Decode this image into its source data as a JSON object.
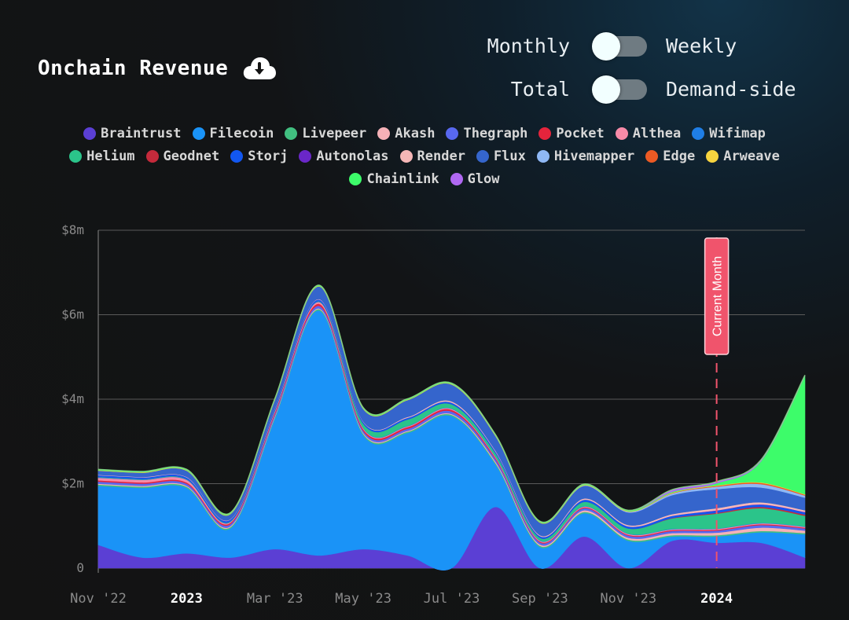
{
  "header": {
    "title": "Onchain Revenue",
    "download_icon": "cloud-download-icon"
  },
  "toggles": [
    {
      "left": "Monthly",
      "right": "Weekly",
      "state": "left"
    },
    {
      "left": "Total",
      "right": "Demand-side",
      "state": "left"
    }
  ],
  "colors": {
    "background": "#131313",
    "grid": "#5a5a5a",
    "marker": "#f0546c",
    "toggle_knob": "#f2ffff",
    "toggle_track": "#6f7b82"
  },
  "legend": [
    {
      "name": "Braintrust",
      "color": "#5b3fd4"
    },
    {
      "name": "Filecoin",
      "color": "#1a93f7"
    },
    {
      "name": "Livepeer",
      "color": "#41bf80"
    },
    {
      "name": "Akash",
      "color": "#f5b1b7"
    },
    {
      "name": "Thegraph",
      "color": "#5868ef"
    },
    {
      "name": "Pocket",
      "color": "#e5243c"
    },
    {
      "name": "Althea",
      "color": "#f78aa8"
    },
    {
      "name": "Wifimap",
      "color": "#1f7ee6"
    },
    {
      "name": "Helium",
      "color": "#2bc48a"
    },
    {
      "name": "Geodnet",
      "color": "#c52a3b"
    },
    {
      "name": "Storj",
      "color": "#1257f0"
    },
    {
      "name": "Autonolas",
      "color": "#6a27c8"
    },
    {
      "name": "Render",
      "color": "#f6b7b7"
    },
    {
      "name": "Flux",
      "color": "#3565cc"
    },
    {
      "name": "Hivemapper",
      "color": "#8fb8f5"
    },
    {
      "name": "Edge",
      "color": "#ec5a24"
    },
    {
      "name": "Arweave",
      "color": "#f7d43f"
    },
    {
      "name": "Chainlink",
      "color": "#3dfc6a"
    },
    {
      "name": "Glow",
      "color": "#b068f2"
    }
  ],
  "chart_data": {
    "type": "area",
    "stacked": true,
    "title": "Onchain Revenue",
    "ylim": [
      0,
      8000000
    ],
    "y_ticks": [
      {
        "value": 0,
        "label": "0"
      },
      {
        "value": 2000000,
        "label": "$2m"
      },
      {
        "value": 4000000,
        "label": "$4m"
      },
      {
        "value": 6000000,
        "label": "$6m"
      },
      {
        "value": 8000000,
        "label": "$8m"
      }
    ],
    "x_ticks": [
      {
        "pos": 0,
        "label": "Nov '22",
        "bold": false
      },
      {
        "pos": 1,
        "label": "2023",
        "bold": true
      },
      {
        "pos": 2,
        "label": "Mar '23",
        "bold": false
      },
      {
        "pos": 3,
        "label": "May '23",
        "bold": false
      },
      {
        "pos": 4,
        "label": "Jul '23",
        "bold": false
      },
      {
        "pos": 5,
        "label": "Sep '23",
        "bold": false
      },
      {
        "pos": 6,
        "label": "Nov '23",
        "bold": false
      },
      {
        "pos": 7,
        "label": "2024",
        "bold": true
      }
    ],
    "x_domain": [
      0,
      8
    ],
    "x": [
      0,
      0.5,
      1,
      1.5,
      2,
      2.5,
      3,
      3.5,
      4,
      4.5,
      5,
      5.5,
      6,
      6.5,
      7,
      7.5,
      8
    ],
    "current_month": {
      "x": 7,
      "label": "Current Month"
    },
    "series": [
      {
        "name": "Braintrust",
        "color": "#5b3fd4",
        "values": [
          550000,
          250000,
          350000,
          250000,
          450000,
          300000,
          450000,
          300000,
          0,
          1450000,
          0,
          750000,
          0,
          650000,
          600000,
          600000,
          250000
        ]
      },
      {
        "name": "Filecoin",
        "color": "#1a93f7",
        "values": [
          1400000,
          1650000,
          1550000,
          700000,
          3100000,
          5800000,
          2700000,
          2900000,
          3600000,
          1000000,
          500000,
          550000,
          650000,
          100000,
          150000,
          250000,
          550000
        ]
      },
      {
        "name": "Livepeer",
        "color": "#41bf80",
        "values": [
          30000,
          30000,
          30000,
          30000,
          30000,
          30000,
          30000,
          30000,
          30000,
          30000,
          30000,
          30000,
          30000,
          30000,
          30000,
          30000,
          30000
        ]
      },
      {
        "name": "Akash",
        "color": "#f5b1b7",
        "values": [
          20000,
          20000,
          20000,
          20000,
          20000,
          20000,
          20000,
          20000,
          20000,
          30000,
          30000,
          40000,
          40000,
          50000,
          60000,
          80000,
          60000
        ]
      },
      {
        "name": "Thegraph",
        "color": "#5868ef",
        "values": [
          50000,
          50000,
          50000,
          50000,
          50000,
          60000,
          50000,
          50000,
          60000,
          60000,
          50000,
          50000,
          50000,
          50000,
          50000,
          60000,
          50000
        ]
      },
      {
        "name": "Pocket",
        "color": "#e5243c",
        "values": [
          30000,
          30000,
          30000,
          30000,
          40000,
          50000,
          40000,
          40000,
          40000,
          30000,
          20000,
          20000,
          20000,
          20000,
          20000,
          20000,
          20000
        ]
      },
      {
        "name": "Althea",
        "color": "#f78aa8",
        "values": [
          60000,
          60000,
          60000,
          20000,
          30000,
          40000,
          20000,
          20000,
          20000,
          20000,
          20000,
          20000,
          20000,
          20000,
          20000,
          20000,
          20000
        ]
      },
      {
        "name": "Wifimap",
        "color": "#1f7ee6",
        "values": [
          10000,
          10000,
          10000,
          10000,
          10000,
          10000,
          10000,
          10000,
          10000,
          10000,
          10000,
          10000,
          10000,
          10000,
          10000,
          10000,
          10000
        ]
      },
      {
        "name": "Helium",
        "color": "#2bc48a",
        "values": [
          10000,
          10000,
          10000,
          10000,
          10000,
          10000,
          100000,
          150000,
          100000,
          80000,
          60000,
          100000,
          120000,
          250000,
          350000,
          350000,
          250000
        ]
      },
      {
        "name": "Geodnet",
        "color": "#c52a3b",
        "values": [
          0,
          0,
          0,
          0,
          0,
          0,
          0,
          0,
          0,
          0,
          0,
          0,
          0,
          10000,
          20000,
          30000,
          30000
        ]
      },
      {
        "name": "Storj",
        "color": "#1257f0",
        "values": [
          40000,
          40000,
          40000,
          40000,
          40000,
          40000,
          40000,
          40000,
          40000,
          40000,
          40000,
          50000,
          50000,
          50000,
          50000,
          50000,
          50000
        ]
      },
      {
        "name": "Autonolas",
        "color": "#6a27c8",
        "values": [
          0,
          0,
          0,
          0,
          0,
          0,
          0,
          0,
          0,
          0,
          0,
          0,
          0,
          0,
          10000,
          10000,
          10000
        ]
      },
      {
        "name": "Render",
        "color": "#f6b7b7",
        "values": [
          10000,
          10000,
          10000,
          10000,
          10000,
          10000,
          10000,
          20000,
          30000,
          20000,
          20000,
          30000,
          30000,
          40000,
          50000,
          50000,
          40000
        ]
      },
      {
        "name": "Flux",
        "color": "#3565cc",
        "values": [
          100000,
          100000,
          150000,
          120000,
          200000,
          300000,
          300000,
          400000,
          400000,
          350000,
          300000,
          300000,
          300000,
          450000,
          450000,
          350000,
          300000
        ]
      },
      {
        "name": "Hivemapper",
        "color": "#8fb8f5",
        "values": [
          0,
          0,
          0,
          0,
          0,
          0,
          0,
          0,
          0,
          0,
          0,
          10000,
          20000,
          40000,
          60000,
          80000,
          50000
        ]
      },
      {
        "name": "Edge",
        "color": "#ec5a24",
        "values": [
          0,
          0,
          0,
          0,
          0,
          0,
          0,
          0,
          0,
          0,
          0,
          0,
          0,
          10000,
          20000,
          30000,
          20000
        ]
      },
      {
        "name": "Arweave",
        "color": "#f7d43f",
        "values": [
          10000,
          10000,
          10000,
          10000,
          10000,
          10000,
          10000,
          10000,
          10000,
          10000,
          10000,
          10000,
          10000,
          10000,
          10000,
          10000,
          10000
        ]
      },
      {
        "name": "Chainlink",
        "color": "#3dfc6a",
        "values": [
          20000,
          20000,
          20000,
          20000,
          20000,
          20000,
          20000,
          20000,
          20000,
          20000,
          20000,
          20000,
          20000,
          20000,
          50000,
          500000,
          2800000
        ]
      },
      {
        "name": "Glow",
        "color": "#b068f2",
        "values": [
          0,
          0,
          0,
          0,
          0,
          0,
          0,
          0,
          0,
          0,
          0,
          0,
          0,
          50000,
          40000,
          30000,
          20000
        ]
      }
    ]
  }
}
